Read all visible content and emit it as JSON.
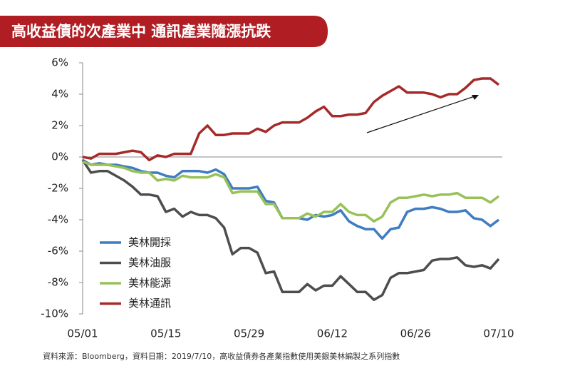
{
  "chart_data": {
    "type": "line",
    "title": "高收益債的次產業中 通訊產業隨漲抗跌",
    "footnote": "資料來源：Bloomberg，資料日期：2019/7/10，高收益債券各產業指數使用美銀美林編製之系列指數",
    "categories": [
      "05/01",
      null,
      null,
      null,
      null,
      null,
      null,
      null,
      null,
      null,
      "05/15",
      null,
      null,
      null,
      null,
      null,
      null,
      null,
      null,
      null,
      "05/29",
      null,
      null,
      null,
      null,
      null,
      null,
      null,
      null,
      null,
      "06/12",
      null,
      null,
      null,
      null,
      null,
      null,
      null,
      null,
      null,
      "06/26",
      null,
      null,
      null,
      null,
      null,
      null,
      null,
      null,
      null,
      "07/10"
    ],
    "ylim": [
      -10,
      6
    ],
    "yticks": [
      {
        "value": -10,
        "label": "-10%"
      },
      {
        "value": -8,
        "label": "-8%"
      },
      {
        "value": -6,
        "label": "-6%"
      },
      {
        "value": -4,
        "label": "-4%"
      },
      {
        "value": -2,
        "label": "-2%"
      },
      {
        "value": 0,
        "label": "0%"
      },
      {
        "value": 2,
        "label": "2%"
      },
      {
        "value": 4,
        "label": "4%"
      },
      {
        "value": 6,
        "label": "6%"
      }
    ],
    "legend": "lower left",
    "series": [
      {
        "name": "美林開採",
        "color": "#3f7cc0",
        "values": [
          -0.2,
          -0.5,
          -0.4,
          -0.5,
          -0.5,
          -0.6,
          -0.7,
          -0.9,
          -1.0,
          -1.0,
          -1.2,
          -1.3,
          -0.9,
          -0.9,
          -0.9,
          -1.0,
          -0.8,
          -1.1,
          -2.0,
          -2.0,
          -2.0,
          -1.9,
          -2.8,
          -2.9,
          -3.9,
          -3.9,
          -3.9,
          -4.0,
          -3.7,
          -3.8,
          -3.7,
          -3.4,
          -4.1,
          -4.4,
          -4.6,
          -4.6,
          -5.2,
          -4.6,
          -4.5,
          -3.5,
          -3.3,
          -3.3,
          -3.2,
          -3.3,
          -3.5,
          -3.5,
          -3.4,
          -3.9,
          -4.0,
          -4.4,
          -4.0
        ]
      },
      {
        "name": "美林油服",
        "color": "#4d4d4d",
        "values": [
          -0.2,
          -1.0,
          -0.9,
          -0.9,
          -1.2,
          -1.5,
          -1.9,
          -2.4,
          -2.4,
          -2.5,
          -3.5,
          -3.3,
          -3.8,
          -3.5,
          -3.7,
          -3.7,
          -3.9,
          -4.5,
          -6.2,
          -5.8,
          -5.8,
          -6.1,
          -7.4,
          -7.3,
          -8.6,
          -8.6,
          -8.6,
          -8.1,
          -8.5,
          -8.2,
          -8.2,
          -7.6,
          -8.1,
          -8.6,
          -8.6,
          -9.1,
          -8.8,
          -7.7,
          -7.4,
          -7.4,
          -7.3,
          -7.2,
          -6.6,
          -6.5,
          -6.5,
          -6.4,
          -6.9,
          -7.0,
          -6.9,
          -7.1,
          -6.5
        ]
      },
      {
        "name": "美林能源",
        "color": "#98c158",
        "values": [
          -0.3,
          -0.5,
          -0.5,
          -0.5,
          -0.6,
          -0.7,
          -0.9,
          -1.0,
          -1.0,
          -1.5,
          -1.4,
          -1.5,
          -1.2,
          -1.3,
          -1.3,
          -1.3,
          -1.1,
          -1.3,
          -2.3,
          -2.2,
          -2.2,
          -2.2,
          -3.0,
          -3.0,
          -3.9,
          -3.9,
          -3.9,
          -3.6,
          -3.8,
          -3.5,
          -3.5,
          -3.0,
          -3.5,
          -3.7,
          -3.7,
          -4.1,
          -3.8,
          -2.9,
          -2.6,
          -2.6,
          -2.5,
          -2.4,
          -2.5,
          -2.4,
          -2.4,
          -2.3,
          -2.6,
          -2.6,
          -2.6,
          -2.9,
          -2.5
        ]
      },
      {
        "name": "美林通訊",
        "color": "#a52a2a",
        "values": [
          0,
          -0.1,
          0.2,
          0.2,
          0.2,
          0.3,
          0.4,
          0.3,
          -0.2,
          0.1,
          0,
          0.2,
          0.2,
          0.2,
          1.5,
          2.0,
          1.4,
          1.4,
          1.5,
          1.5,
          1.5,
          1.8,
          1.6,
          2.0,
          2.2,
          2.2,
          2.2,
          2.5,
          2.9,
          3.2,
          2.6,
          2.6,
          2.7,
          2.7,
          2.8,
          3.5,
          3.9,
          4.2,
          4.5,
          4.1,
          4.1,
          4.1,
          4.0,
          3.8,
          4.0,
          4.0,
          4.4,
          4.9,
          5.0,
          5.0,
          4.6
        ]
      }
    ]
  }
}
